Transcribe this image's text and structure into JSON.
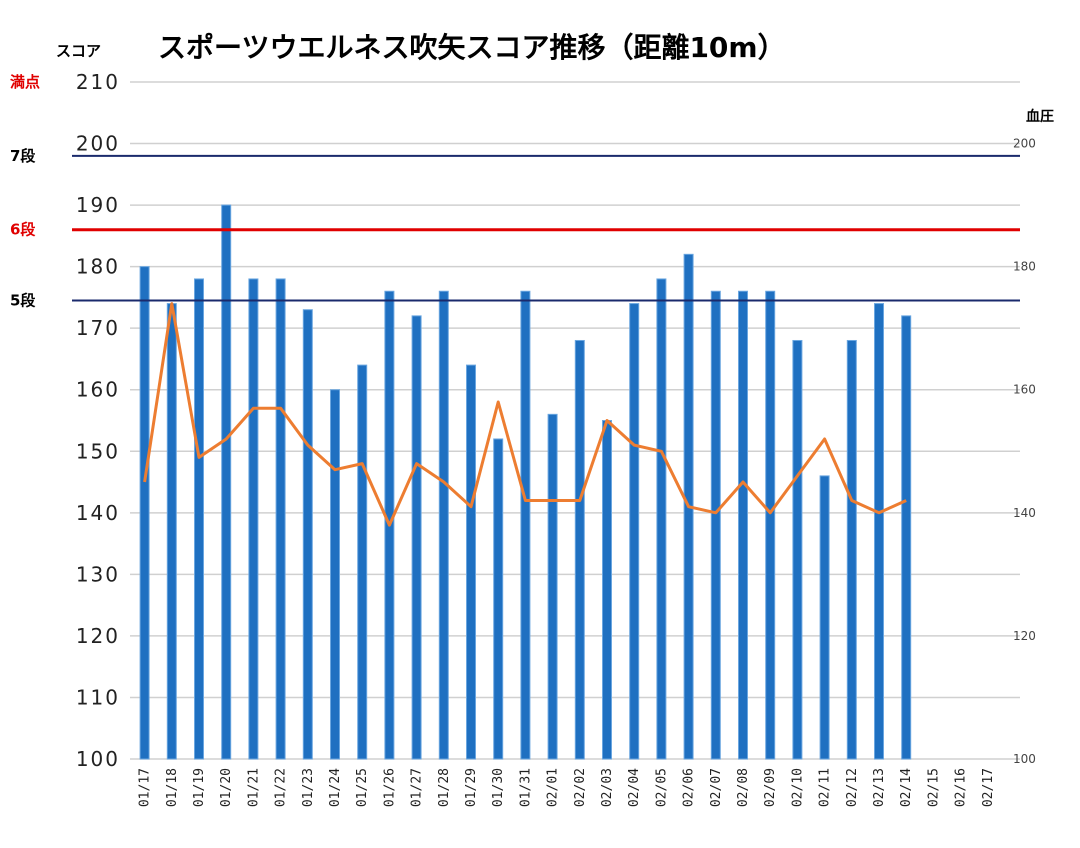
{
  "chart_data": {
    "type": "bar",
    "title": "スポーツウエルネス吹矢スコア推移（距離10m）",
    "ylabel_left": "スコア",
    "ylabel_right": "血圧",
    "ylim_left": [
      100,
      210
    ],
    "ylim_right": [
      100,
      210
    ],
    "yticks_left": [
      100,
      110,
      120,
      130,
      140,
      150,
      160,
      170,
      180,
      190,
      200,
      210
    ],
    "yticks_right": [
      100,
      120,
      140,
      160,
      180,
      200
    ],
    "grid": true,
    "categories": [
      "01/17",
      "01/18",
      "01/19",
      "01/20",
      "01/21",
      "01/22",
      "01/23",
      "01/24",
      "01/25",
      "01/26",
      "01/27",
      "01/28",
      "01/29",
      "01/30",
      "01/31",
      "02/01",
      "02/02",
      "02/03",
      "02/04",
      "02/05",
      "02/06",
      "02/07",
      "02/08",
      "02/09",
      "02/10",
      "02/11",
      "02/12",
      "02/13",
      "02/14",
      "02/15",
      "02/16",
      "02/17"
    ],
    "series": [
      {
        "type": "bar",
        "axis": "left",
        "color": "#1f70c1",
        "values": [
          180,
          174,
          178,
          190,
          178,
          178,
          173,
          160,
          164,
          176,
          172,
          176,
          164,
          152,
          176,
          156,
          168,
          155,
          174,
          178,
          182,
          176,
          176,
          176,
          168,
          146,
          168,
          174,
          172,
          null,
          null,
          null
        ]
      },
      {
        "type": "line",
        "axis": "right",
        "color": "#ed7d31",
        "values": [
          145,
          174,
          149,
          152,
          157,
          157,
          151,
          147,
          148,
          138,
          148,
          145,
          141,
          158,
          142,
          142,
          142,
          155,
          151,
          150,
          141,
          140,
          145,
          140,
          146,
          152,
          142,
          140,
          142,
          null,
          null,
          null
        ]
      }
    ],
    "reference_lines": [
      {
        "label": "満点",
        "value": 210,
        "color": "#e00000",
        "drawn": false
      },
      {
        "label": "7段",
        "value": 198,
        "color": "#1a2a6c",
        "drawn": true
      },
      {
        "label": "6段",
        "value": 186,
        "color": "#e00000",
        "drawn": true
      },
      {
        "label": "5段",
        "value": 174.5,
        "color": "#1a2a6c",
        "drawn": true
      }
    ]
  }
}
